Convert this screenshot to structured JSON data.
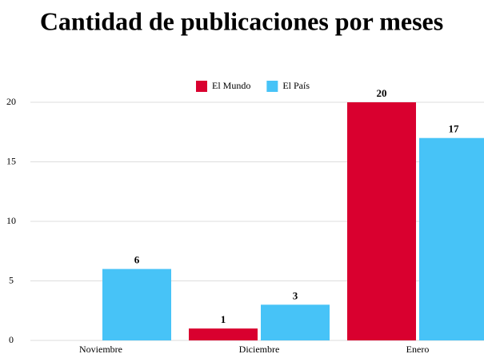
{
  "chart_data": {
    "type": "bar",
    "title": "Cantidad de publicaciones por meses",
    "categories": [
      "Noviembre",
      "Diciembre",
      "Enero"
    ],
    "series": [
      {
        "name": "El Mundo",
        "color": "#d9002f",
        "values": [
          0,
          1,
          20
        ]
      },
      {
        "name": "El País",
        "color": "#47c3f7",
        "values": [
          6,
          3,
          17
        ]
      }
    ],
    "ylim": [
      0,
      20
    ],
    "yticks": [
      0,
      5,
      10,
      15,
      20
    ],
    "grid": true,
    "legend": "top"
  }
}
